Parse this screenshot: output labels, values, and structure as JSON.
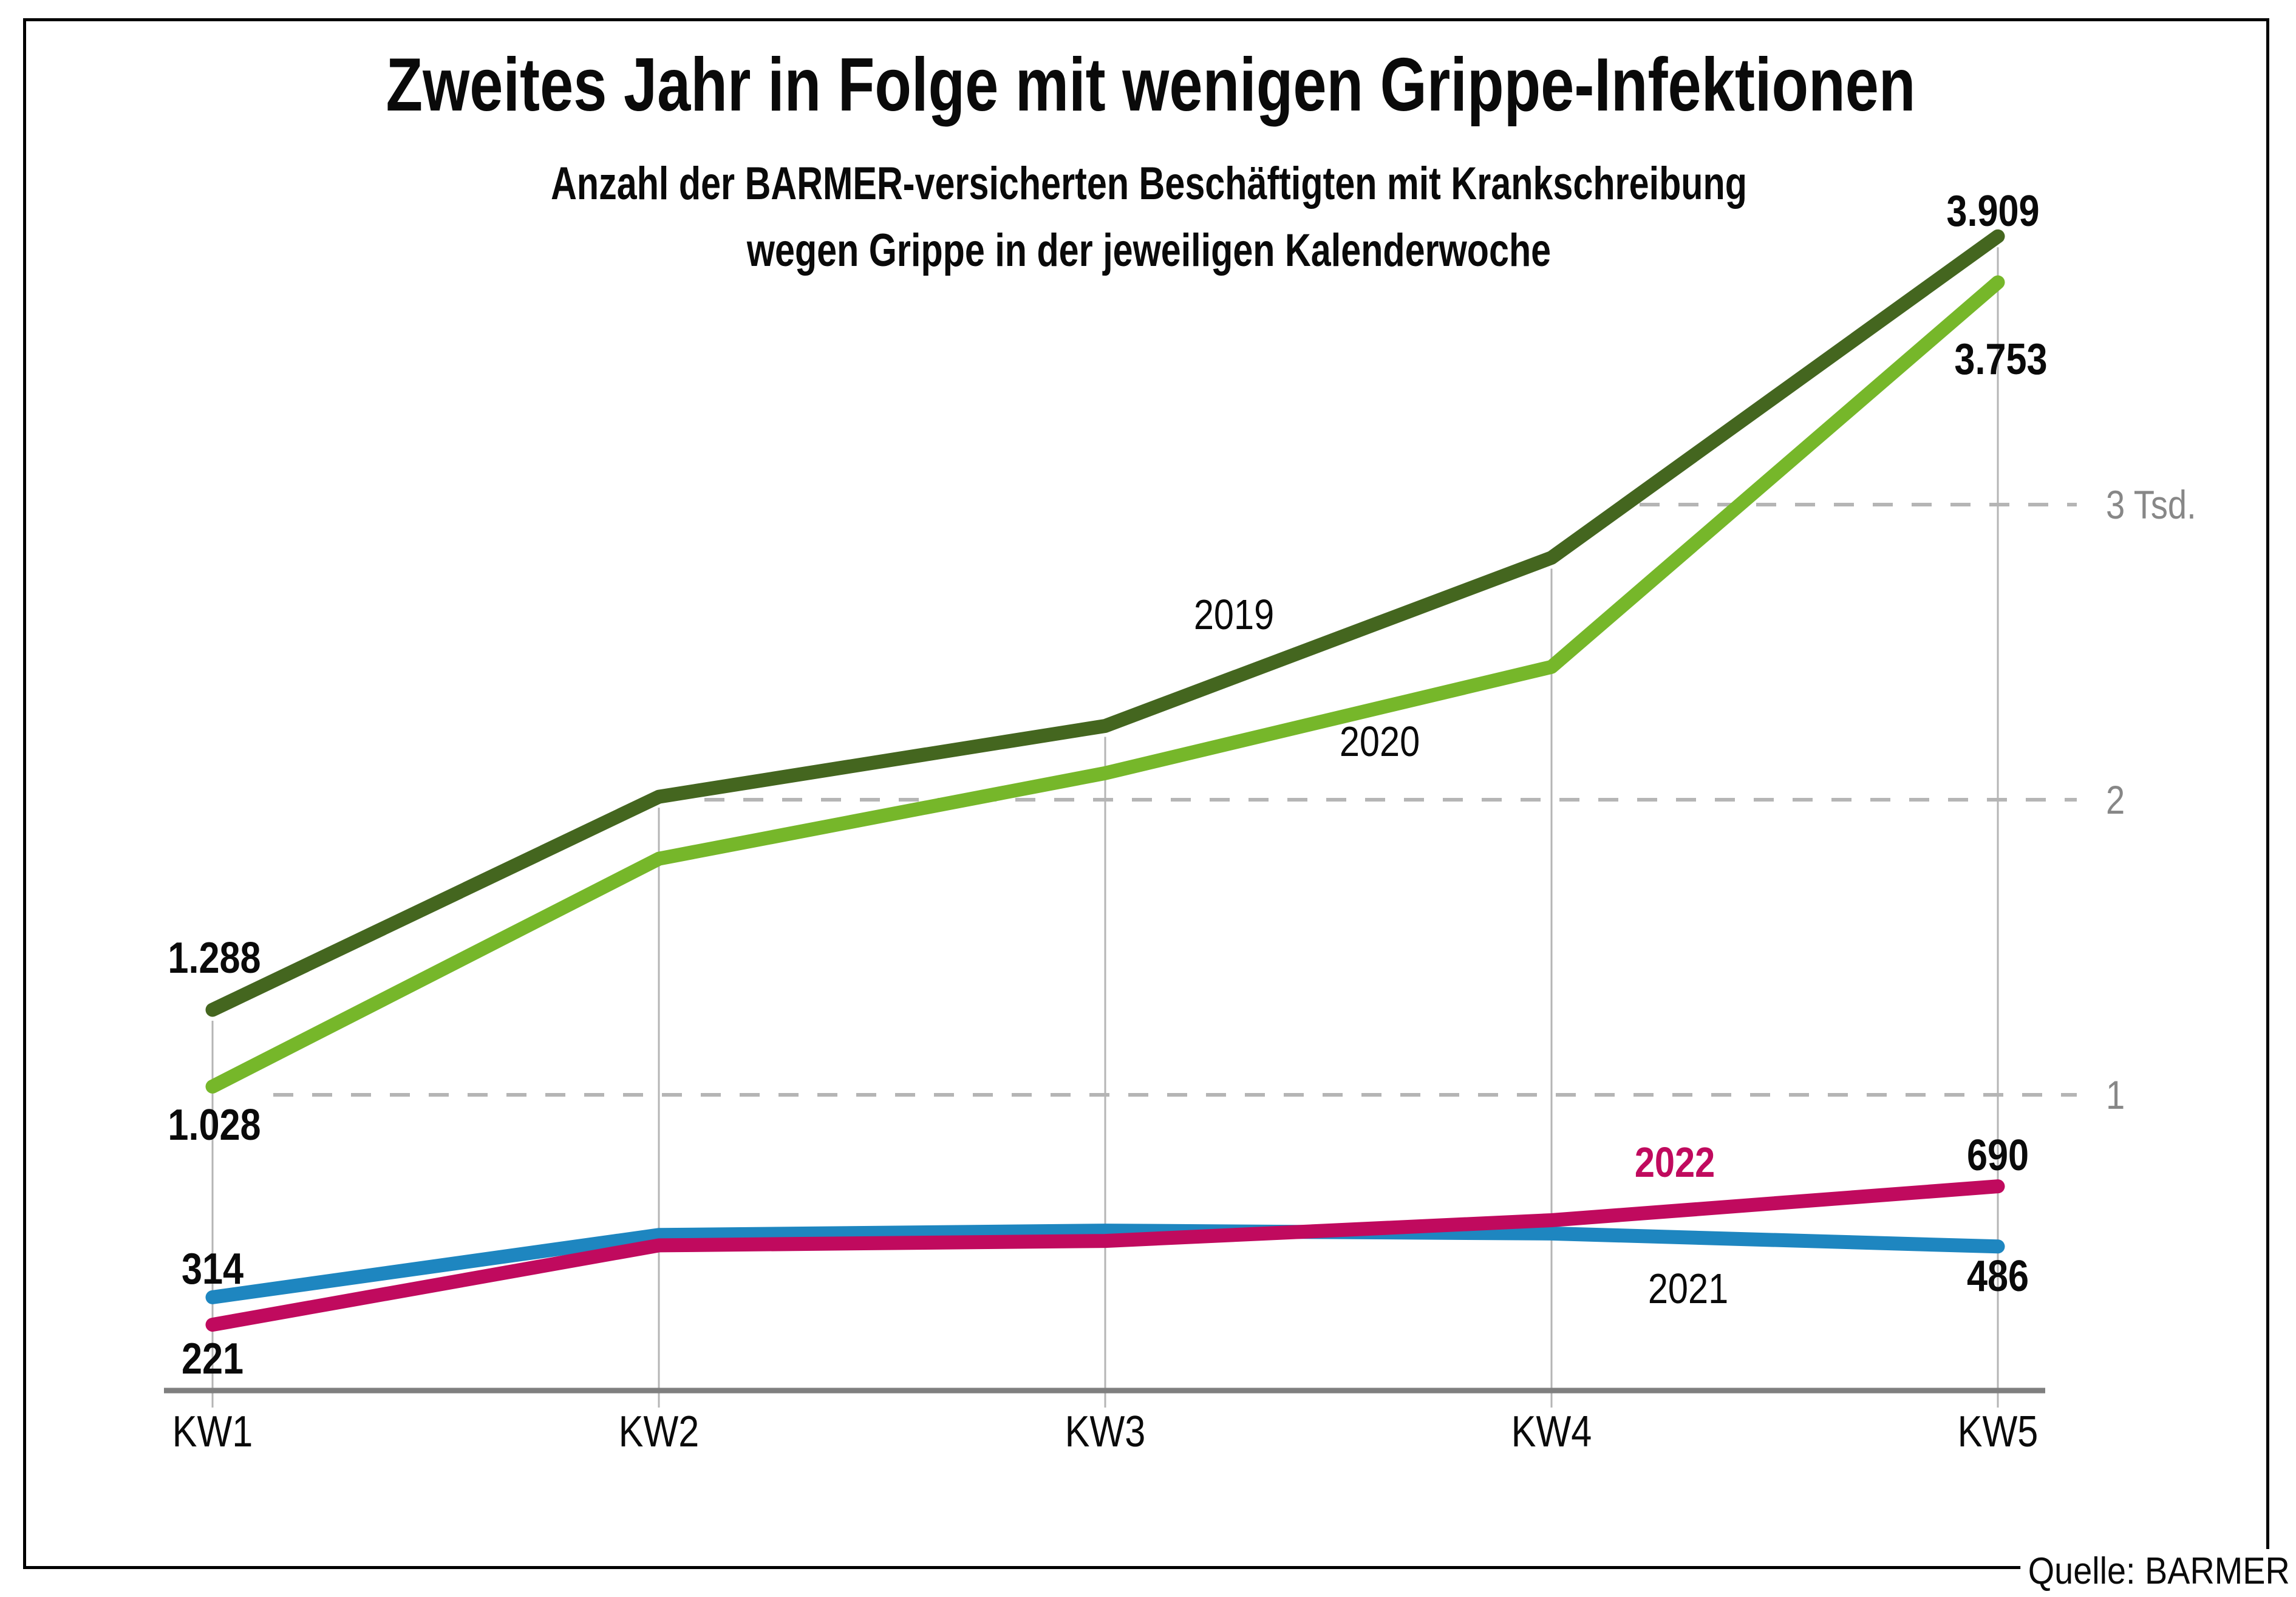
{
  "header": {
    "title": "Zweites Jahr in Folge mit wenigen Grippe-Infektionen",
    "subtitle_line1": "Anzahl der BARMER-versicherten Beschäftigten mit Krankschreibung",
    "subtitle_line2": "wegen Grippe in der jeweiligen Kalenderwoche"
  },
  "source_label": "Quelle: BARMER",
  "colors": {
    "series_2019": "#44661f",
    "series_2020": "#76b72a",
    "series_2021": "#1e86c0",
    "series_2022": "#c00a5e",
    "grid_gray": "#b5b5b5",
    "axis_gray": "#7f7f7f",
    "scale_label_gray": "#878787",
    "text_black": "#0a0a0a"
  },
  "chart_data": {
    "type": "line",
    "title": "Zweites Jahr in Folge mit wenigen Grippe-Infektionen",
    "subtitle": "Anzahl der BARMER-versicherten Beschäftigten mit Krankschreibung wegen Grippe in der jeweiligen Kalenderwoche",
    "categories": [
      "KW1",
      "KW2",
      "KW3",
      "KW4",
      "KW5"
    ],
    "ylim": [
      0,
      4000
    ],
    "grid": "dashed horizontal gridlines at 1000, 2000, 3000; thin vertical gridline per calendar week",
    "legend_position": "inline labels next to lines",
    "gridlines": [
      {
        "value": 1000,
        "label": "1"
      },
      {
        "value": 2000,
        "label": "2"
      },
      {
        "value": 3000,
        "label": "3 Tsd."
      }
    ],
    "series": [
      {
        "name": "2019",
        "color": "#44661f",
        "values": [
          1288,
          2010,
          2250,
          2820,
          3909
        ],
        "labeled_points": {
          "KW1": 1288,
          "KW5": 3909
        },
        "label_first": "1.288",
        "label_last": "3.909"
      },
      {
        "name": "2020",
        "color": "#76b72a",
        "values": [
          1028,
          1800,
          2090,
          2450,
          3753
        ],
        "labeled_points": {
          "KW1": 1028,
          "KW5": 3753
        },
        "label_first": "1.028",
        "label_last": "3.753"
      },
      {
        "name": "2021",
        "color": "#1e86c0",
        "values": [
          314,
          525,
          540,
          530,
          486
        ],
        "labeled_points": {
          "KW1": 314,
          "KW5": 486
        },
        "label_first": "314",
        "label_last": "486"
      },
      {
        "name": "2022",
        "color": "#c00a5e",
        "values": [
          221,
          490,
          505,
          575,
          690
        ],
        "labeled_points": {
          "KW1": 221,
          "KW5": 690
        },
        "label_first": "221",
        "label_last": "690"
      }
    ]
  }
}
